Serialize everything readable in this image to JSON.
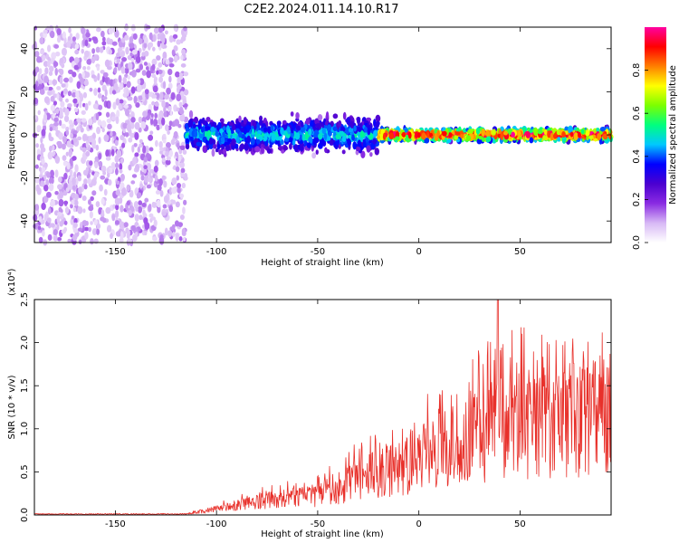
{
  "title": "C2E2.2024.011.14.10.R17",
  "chart_data": [
    {
      "type": "heatmap",
      "xlabel": "Height of straight line (km)",
      "ylabel": "Frequency (Hz)",
      "xlim": [
        -190,
        95
      ],
      "ylim": [
        -50,
        50
      ],
      "xticks": [
        -150,
        -100,
        -50,
        0,
        50
      ],
      "yticks": [
        -40,
        -20,
        0,
        20,
        40
      ],
      "colorbar": {
        "label": "Normalized spectral amplitude",
        "range": [
          0.0,
          1.0
        ],
        "ticks": [
          0.0,
          0.2,
          0.4,
          0.6,
          0.8
        ],
        "colors": [
          "#ffffff",
          "#d7b8f5",
          "#8a2be2",
          "#4b00d0",
          "#0000ff",
          "#00c8ff",
          "#00ff7f",
          "#7cff00",
          "#ffff00",
          "#ff7f00",
          "#ff0000",
          "#ff00a0"
        ]
      },
      "regions": [
        {
          "x": [
            -190,
            -115
          ],
          "freq_spread": 50,
          "amplitude": 0.12
        },
        {
          "x": [
            -115,
            -20
          ],
          "freq_spread": 6,
          "amplitude": 0.4
        },
        {
          "x": [
            -20,
            95
          ],
          "freq_spread": 2,
          "amplitude": 0.9
        }
      ]
    },
    {
      "type": "line",
      "xlabel": "Height of straight line (km)",
      "ylabel": "SNR (10 * v/v)",
      "y_multiplier": "(x10⁴)",
      "xlim": [
        -190,
        95
      ],
      "ylim": [
        0.0,
        2.5
      ],
      "xticks": [
        -150,
        -100,
        -50,
        0,
        50
      ],
      "yticks": [
        "0.0",
        "0.5",
        "1.0",
        "1.5",
        "2.0",
        "2.5"
      ],
      "color": "#e8302a",
      "trend": [
        {
          "x": -190,
          "y": 0.01
        },
        {
          "x": -115,
          "y": 0.01
        },
        {
          "x": -100,
          "y": 0.08
        },
        {
          "x": -75,
          "y": 0.18
        },
        {
          "x": -50,
          "y": 0.25
        },
        {
          "x": -30,
          "y": 0.45
        },
        {
          "x": -10,
          "y": 0.62
        },
        {
          "x": 10,
          "y": 0.82
        },
        {
          "x": 30,
          "y": 1.05
        },
        {
          "x": 50,
          "y": 1.15
        },
        {
          "x": 70,
          "y": 1.22
        },
        {
          "x": 95,
          "y": 1.28
        }
      ],
      "peak": {
        "x": 39,
        "y": 2.5
      }
    }
  ]
}
